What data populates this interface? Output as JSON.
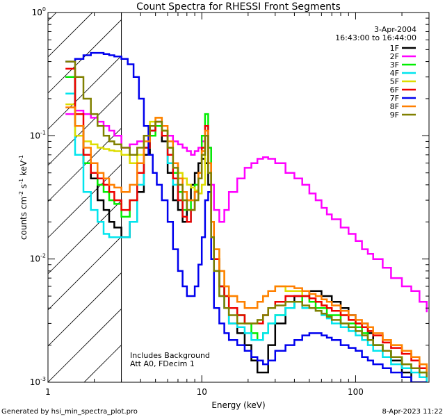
{
  "chart_data": {
    "type": "line",
    "title": "Count Spectra for RHESSI Front Segments",
    "xlabel": "Energy (keV)",
    "ylabel": "counts cm-2 s-1 keV-1",
    "ylabel_parts": {
      "base": "counts cm",
      "exp1": "-2",
      "mid": " s",
      "exp2": "-1",
      "end": " keV",
      "exp3": "-1"
    },
    "xscale": "log",
    "yscale": "log",
    "xlim": [
      1,
      300
    ],
    "ylim": [
      0.001,
      1
    ],
    "x_ticks": [
      {
        "v": 1,
        "label": "1"
      },
      {
        "v": 10,
        "label": "10"
      },
      {
        "v": 100,
        "label": "100"
      }
    ],
    "y_ticks": [
      {
        "v": 0.001,
        "base": "10",
        "exp": "-3"
      },
      {
        "v": 0.01,
        "base": "10",
        "exp": "-2"
      },
      {
        "v": 0.1,
        "base": "10",
        "exp": "-1"
      },
      {
        "v": 1,
        "base": "10",
        "exp": "0"
      }
    ],
    "date": "3-Apr-2004",
    "time_range": "16:43:00 to 16:44:00",
    "notes": [
      "Includes Background",
      "Att A0, FDecim 1"
    ],
    "shaded_region": [
      1,
      3
    ],
    "series": [
      {
        "name": "1F",
        "color": "#000000",
        "x": [
          1.3,
          1.5,
          1.7,
          1.9,
          2.1,
          2.3,
          2.5,
          2.7,
          3.0,
          3.4,
          3.8,
          4.2,
          4.6,
          5.0,
          5.5,
          6.0,
          6.5,
          7.0,
          7.5,
          8.0,
          8.5,
          9.0,
          9.5,
          10.0,
          10.5,
          11.0,
          11.5,
          12,
          13,
          14,
          15,
          17,
          19,
          21,
          23,
          25,
          27,
          30,
          35,
          40,
          45,
          50,
          55,
          60,
          65,
          70,
          80,
          90,
          100,
          110,
          120,
          130,
          150,
          170,
          200,
          230,
          260,
          290
        ],
        "y": [
          0.3,
          0.12,
          0.06,
          0.045,
          0.03,
          0.025,
          0.02,
          0.018,
          0.015,
          0.02,
          0.035,
          0.07,
          0.11,
          0.12,
          0.09,
          0.05,
          0.03,
          0.025,
          0.02,
          0.03,
          0.04,
          0.05,
          0.06,
          0.065,
          0.06,
          0.04,
          0.015,
          0.01,
          0.006,
          0.004,
          0.003,
          0.0025,
          0.002,
          0.0015,
          0.0012,
          0.0012,
          0.002,
          0.003,
          0.004,
          0.005,
          0.005,
          0.0055,
          0.0055,
          0.005,
          0.005,
          0.0045,
          0.004,
          0.0035,
          0.003,
          0.003,
          0.0025,
          0.002,
          0.0018,
          0.0015,
          0.0012,
          0.001,
          0.001,
          0.001
        ]
      },
      {
        "name": "2F",
        "color": "#ff00ff",
        "x": [
          1.3,
          1.5,
          1.7,
          1.9,
          2.1,
          2.3,
          2.5,
          2.7,
          3.0,
          3.4,
          3.8,
          4.2,
          4.6,
          5.0,
          5.5,
          6.0,
          6.5,
          7.0,
          7.5,
          8.0,
          8.5,
          9.0,
          9.5,
          10.0,
          10.5,
          11.0,
          11.5,
          12,
          13,
          14,
          15,
          17,
          19,
          21,
          23,
          25,
          27,
          30,
          35,
          40,
          45,
          50,
          55,
          60,
          65,
          70,
          80,
          90,
          100,
          110,
          120,
          130,
          150,
          170,
          200,
          230,
          260,
          290
        ],
        "y": [
          0.15,
          0.16,
          0.15,
          0.14,
          0.13,
          0.12,
          0.11,
          0.1,
          0.08,
          0.085,
          0.09,
          0.1,
          0.11,
          0.12,
          0.11,
          0.1,
          0.09,
          0.085,
          0.08,
          0.075,
          0.07,
          0.075,
          0.08,
          0.09,
          0.1,
          0.08,
          0.04,
          0.025,
          0.02,
          0.025,
          0.035,
          0.045,
          0.055,
          0.06,
          0.065,
          0.067,
          0.065,
          0.06,
          0.05,
          0.045,
          0.04,
          0.034,
          0.03,
          0.026,
          0.023,
          0.021,
          0.018,
          0.016,
          0.014,
          0.012,
          0.011,
          0.01,
          0.0085,
          0.007,
          0.006,
          0.0055,
          0.0045,
          0.0037
        ]
      },
      {
        "name": "3F",
        "color": "#00ee00",
        "x": [
          1.3,
          1.5,
          1.7,
          1.9,
          2.1,
          2.3,
          2.5,
          2.7,
          3.0,
          3.4,
          3.8,
          4.2,
          4.6,
          5.0,
          5.5,
          6.0,
          6.5,
          7.0,
          7.5,
          8.0,
          8.5,
          9.0,
          9.5,
          10.0,
          10.5,
          11.0,
          11.5,
          12,
          13,
          14,
          15,
          17,
          19,
          21,
          23,
          25,
          27,
          30,
          35,
          40,
          45,
          50,
          55,
          60,
          65,
          70,
          80,
          90,
          100,
          110,
          120,
          130,
          150,
          170,
          200,
          230,
          260,
          290
        ],
        "y": [
          0.3,
          0.12,
          0.06,
          0.05,
          0.04,
          0.035,
          0.03,
          0.028,
          0.022,
          0.03,
          0.05,
          0.08,
          0.1,
          0.12,
          0.11,
          0.08,
          0.05,
          0.035,
          0.025,
          0.025,
          0.03,
          0.04,
          0.05,
          0.1,
          0.15,
          0.08,
          0.02,
          0.01,
          0.006,
          0.005,
          0.004,
          0.0035,
          0.003,
          0.0025,
          0.0022,
          0.0025,
          0.003,
          0.0035,
          0.004,
          0.0045,
          0.005,
          0.0045,
          0.004,
          0.004,
          0.0035,
          0.0035,
          0.003,
          0.003,
          0.0028,
          0.0025,
          0.0022,
          0.002,
          0.0018,
          0.0016,
          0.0014,
          0.0013,
          0.0012,
          0.001
        ]
      },
      {
        "name": "4F",
        "color": "#00e5ee",
        "x": [
          1.3,
          1.5,
          1.7,
          1.9,
          2.1,
          2.3,
          2.5,
          2.7,
          3.0,
          3.4,
          3.8,
          4.2,
          4.6,
          5.0,
          5.5,
          6.0,
          6.5,
          7.0,
          7.5,
          8.0,
          8.5,
          9.0,
          9.5,
          10.0,
          10.5,
          11.0,
          11.5,
          12,
          13,
          14,
          15,
          17,
          19,
          21,
          23,
          25,
          27,
          30,
          35,
          40,
          45,
          50,
          55,
          60,
          65,
          70,
          80,
          90,
          100,
          110,
          120,
          130,
          150,
          170,
          200,
          230,
          260,
          290
        ],
        "y": [
          0.22,
          0.07,
          0.035,
          0.025,
          0.02,
          0.016,
          0.015,
          0.015,
          0.015,
          0.02,
          0.04,
          0.08,
          0.11,
          0.13,
          0.1,
          0.06,
          0.04,
          0.03,
          0.022,
          0.02,
          0.025,
          0.035,
          0.05,
          0.08,
          0.12,
          0.06,
          0.015,
          0.008,
          0.005,
          0.004,
          0.003,
          0.0028,
          0.0025,
          0.0022,
          0.0022,
          0.0025,
          0.003,
          0.0035,
          0.004,
          0.0045,
          0.004,
          0.004,
          0.0038,
          0.0035,
          0.0033,
          0.003,
          0.0028,
          0.0026,
          0.0024,
          0.0022,
          0.002,
          0.0018,
          0.0016,
          0.0014,
          0.0013,
          0.0012,
          0.0011,
          0.001
        ]
      },
      {
        "name": "5F",
        "color": "#dddd00",
        "x": [
          1.3,
          1.5,
          1.7,
          1.9,
          2.1,
          2.3,
          2.5,
          2.7,
          3.0,
          3.4,
          3.8,
          4.2,
          4.6,
          5.0,
          5.5,
          6.0,
          6.5,
          7.0,
          7.5,
          8.0,
          8.5,
          9.0,
          9.5,
          10.0,
          10.5,
          11.0,
          11.5,
          12,
          13,
          14,
          15,
          17,
          19,
          21,
          23,
          25,
          27,
          30,
          35,
          40,
          45,
          50,
          55,
          60,
          65,
          70,
          80,
          90,
          100,
          110,
          120,
          130,
          150,
          170,
          200,
          230,
          260,
          290
        ],
        "y": [
          0.18,
          0.1,
          0.09,
          0.085,
          0.08,
          0.078,
          0.076,
          0.075,
          0.07,
          0.06,
          0.07,
          0.1,
          0.13,
          0.14,
          0.11,
          0.08,
          0.06,
          0.05,
          0.045,
          0.04,
          0.038,
          0.036,
          0.034,
          0.04,
          0.1,
          0.06,
          0.02,
          0.012,
          0.008,
          0.006,
          0.005,
          0.0045,
          0.004,
          0.004,
          0.0045,
          0.005,
          0.0055,
          0.006,
          0.0055,
          0.0055,
          0.005,
          0.0048,
          0.0045,
          0.0042,
          0.004,
          0.0038,
          0.0035,
          0.0032,
          0.003,
          0.0028,
          0.0026,
          0.0024,
          0.0022,
          0.002,
          0.0018,
          0.0016,
          0.0014,
          0.0012
        ]
      },
      {
        "name": "6F",
        "color": "#ee0000",
        "x": [
          1.3,
          1.5,
          1.7,
          1.9,
          2.1,
          2.3,
          2.5,
          2.7,
          3.0,
          3.4,
          3.8,
          4.2,
          4.6,
          5.0,
          5.5,
          6.0,
          6.5,
          7.0,
          7.5,
          8.0,
          8.5,
          9.0,
          9.5,
          10.0,
          10.5,
          11.0,
          11.5,
          12,
          13,
          14,
          15,
          17,
          19,
          21,
          23,
          25,
          27,
          30,
          35,
          40,
          45,
          50,
          55,
          60,
          65,
          70,
          80,
          90,
          100,
          110,
          120,
          130,
          150,
          170,
          200,
          230,
          260,
          290
        ],
        "y": [
          0.35,
          0.15,
          0.07,
          0.05,
          0.045,
          0.04,
          0.035,
          0.03,
          0.025,
          0.03,
          0.05,
          0.08,
          0.11,
          0.13,
          0.1,
          0.07,
          0.045,
          0.03,
          0.022,
          0.02,
          0.025,
          0.035,
          0.05,
          0.08,
          0.12,
          0.06,
          0.02,
          0.01,
          0.006,
          0.005,
          0.004,
          0.0035,
          0.003,
          0.003,
          0.003,
          0.0035,
          0.004,
          0.0045,
          0.005,
          0.005,
          0.005,
          0.0048,
          0.0045,
          0.0042,
          0.004,
          0.0038,
          0.0035,
          0.0032,
          0.003,
          0.0028,
          0.0026,
          0.0024,
          0.0021,
          0.0019,
          0.0017,
          0.0015,
          0.0013,
          0.0011
        ]
      },
      {
        "name": "7F",
        "color": "#0000ee",
        "x": [
          1.3,
          1.5,
          1.7,
          1.9,
          2.1,
          2.3,
          2.5,
          2.7,
          3.0,
          3.3,
          3.6,
          3.9,
          4.2,
          4.5,
          4.8,
          5.1,
          5.5,
          6.0,
          6.5,
          7.0,
          7.5,
          8.0,
          8.5,
          9.0,
          9.5,
          10.0,
          10.5,
          11.0,
          11.5,
          12,
          13,
          14,
          15,
          17,
          19,
          21,
          23,
          25,
          27,
          30,
          35,
          40,
          45,
          50,
          55,
          60,
          65,
          70,
          80,
          90,
          100,
          110,
          120,
          130,
          150,
          170,
          200,
          230,
          260,
          290
        ],
        "y": [
          0.4,
          0.42,
          0.45,
          0.47,
          0.47,
          0.46,
          0.45,
          0.44,
          0.42,
          0.38,
          0.3,
          0.2,
          0.12,
          0.07,
          0.05,
          0.04,
          0.03,
          0.02,
          0.012,
          0.008,
          0.006,
          0.005,
          0.005,
          0.006,
          0.009,
          0.015,
          0.03,
          0.035,
          0.01,
          0.004,
          0.003,
          0.0025,
          0.0022,
          0.002,
          0.0018,
          0.0016,
          0.0015,
          0.0014,
          0.0015,
          0.0018,
          0.002,
          0.0022,
          0.0024,
          0.0025,
          0.0025,
          0.0024,
          0.0023,
          0.0022,
          0.002,
          0.0019,
          0.0018,
          0.0016,
          0.0015,
          0.0014,
          0.0013,
          0.0012,
          0.0011,
          0.001,
          0.001,
          0.001
        ]
      },
      {
        "name": "8F",
        "color": "#ff7f00",
        "x": [
          1.3,
          1.5,
          1.7,
          1.9,
          2.1,
          2.3,
          2.5,
          2.7,
          3.0,
          3.4,
          3.8,
          4.2,
          4.6,
          5.0,
          5.5,
          6.0,
          6.5,
          7.0,
          7.5,
          8.0,
          8.5,
          9.0,
          9.5,
          10.0,
          10.5,
          11.0,
          11.5,
          12,
          13,
          14,
          15,
          17,
          19,
          21,
          23,
          25,
          27,
          30,
          35,
          40,
          45,
          50,
          55,
          60,
          65,
          70,
          80,
          90,
          100,
          110,
          120,
          130,
          150,
          170,
          200,
          230,
          260,
          290
        ],
        "y": [
          0.17,
          0.12,
          0.08,
          0.06,
          0.05,
          0.045,
          0.04,
          0.038,
          0.035,
          0.04,
          0.06,
          0.09,
          0.12,
          0.14,
          0.12,
          0.09,
          0.06,
          0.045,
          0.035,
          0.03,
          0.03,
          0.035,
          0.05,
          0.075,
          0.11,
          0.06,
          0.02,
          0.012,
          0.008,
          0.006,
          0.005,
          0.0045,
          0.004,
          0.004,
          0.0045,
          0.005,
          0.0055,
          0.006,
          0.006,
          0.0058,
          0.0055,
          0.0052,
          0.005,
          0.0047,
          0.0045,
          0.0042,
          0.0038,
          0.0035,
          0.0032,
          0.003,
          0.0028,
          0.0025,
          0.0022,
          0.002,
          0.0018,
          0.0016,
          0.0014,
          0.0012
        ]
      },
      {
        "name": "9F",
        "color": "#808000",
        "x": [
          1.3,
          1.5,
          1.7,
          1.9,
          2.1,
          2.3,
          2.5,
          2.7,
          3.0,
          3.4,
          3.8,
          4.2,
          4.6,
          5.0,
          5.5,
          6.0,
          6.5,
          7.0,
          7.5,
          8.0,
          8.5,
          9.0,
          9.5,
          10.0,
          10.5,
          11.0,
          11.5,
          12,
          13,
          14,
          15,
          17,
          19,
          21,
          23,
          25,
          27,
          30,
          35,
          40,
          45,
          50,
          55,
          60,
          65,
          70,
          80,
          90,
          100,
          110,
          120,
          130,
          150,
          170,
          200,
          230,
          260,
          290
        ],
        "y": [
          0.4,
          0.3,
          0.2,
          0.15,
          0.12,
          0.1,
          0.09,
          0.085,
          0.08,
          0.07,
          0.08,
          0.1,
          0.12,
          0.13,
          0.11,
          0.08,
          0.055,
          0.04,
          0.03,
          0.025,
          0.025,
          0.03,
          0.045,
          0.07,
          0.1,
          0.05,
          0.015,
          0.008,
          0.005,
          0.004,
          0.0035,
          0.003,
          0.003,
          0.003,
          0.0032,
          0.0035,
          0.004,
          0.0042,
          0.0045,
          0.0045,
          0.0042,
          0.004,
          0.0038,
          0.0036,
          0.0034,
          0.0032,
          0.003,
          0.0028,
          0.0026,
          0.0024,
          0.0022,
          0.002,
          0.0018,
          0.0016,
          0.0014,
          0.0013,
          0.0012,
          0.0011
        ]
      }
    ]
  },
  "footer": {
    "left": "Generated by hsi_min_spectra_plot.pro",
    "right": "8-Apr-2023 11:22"
  }
}
